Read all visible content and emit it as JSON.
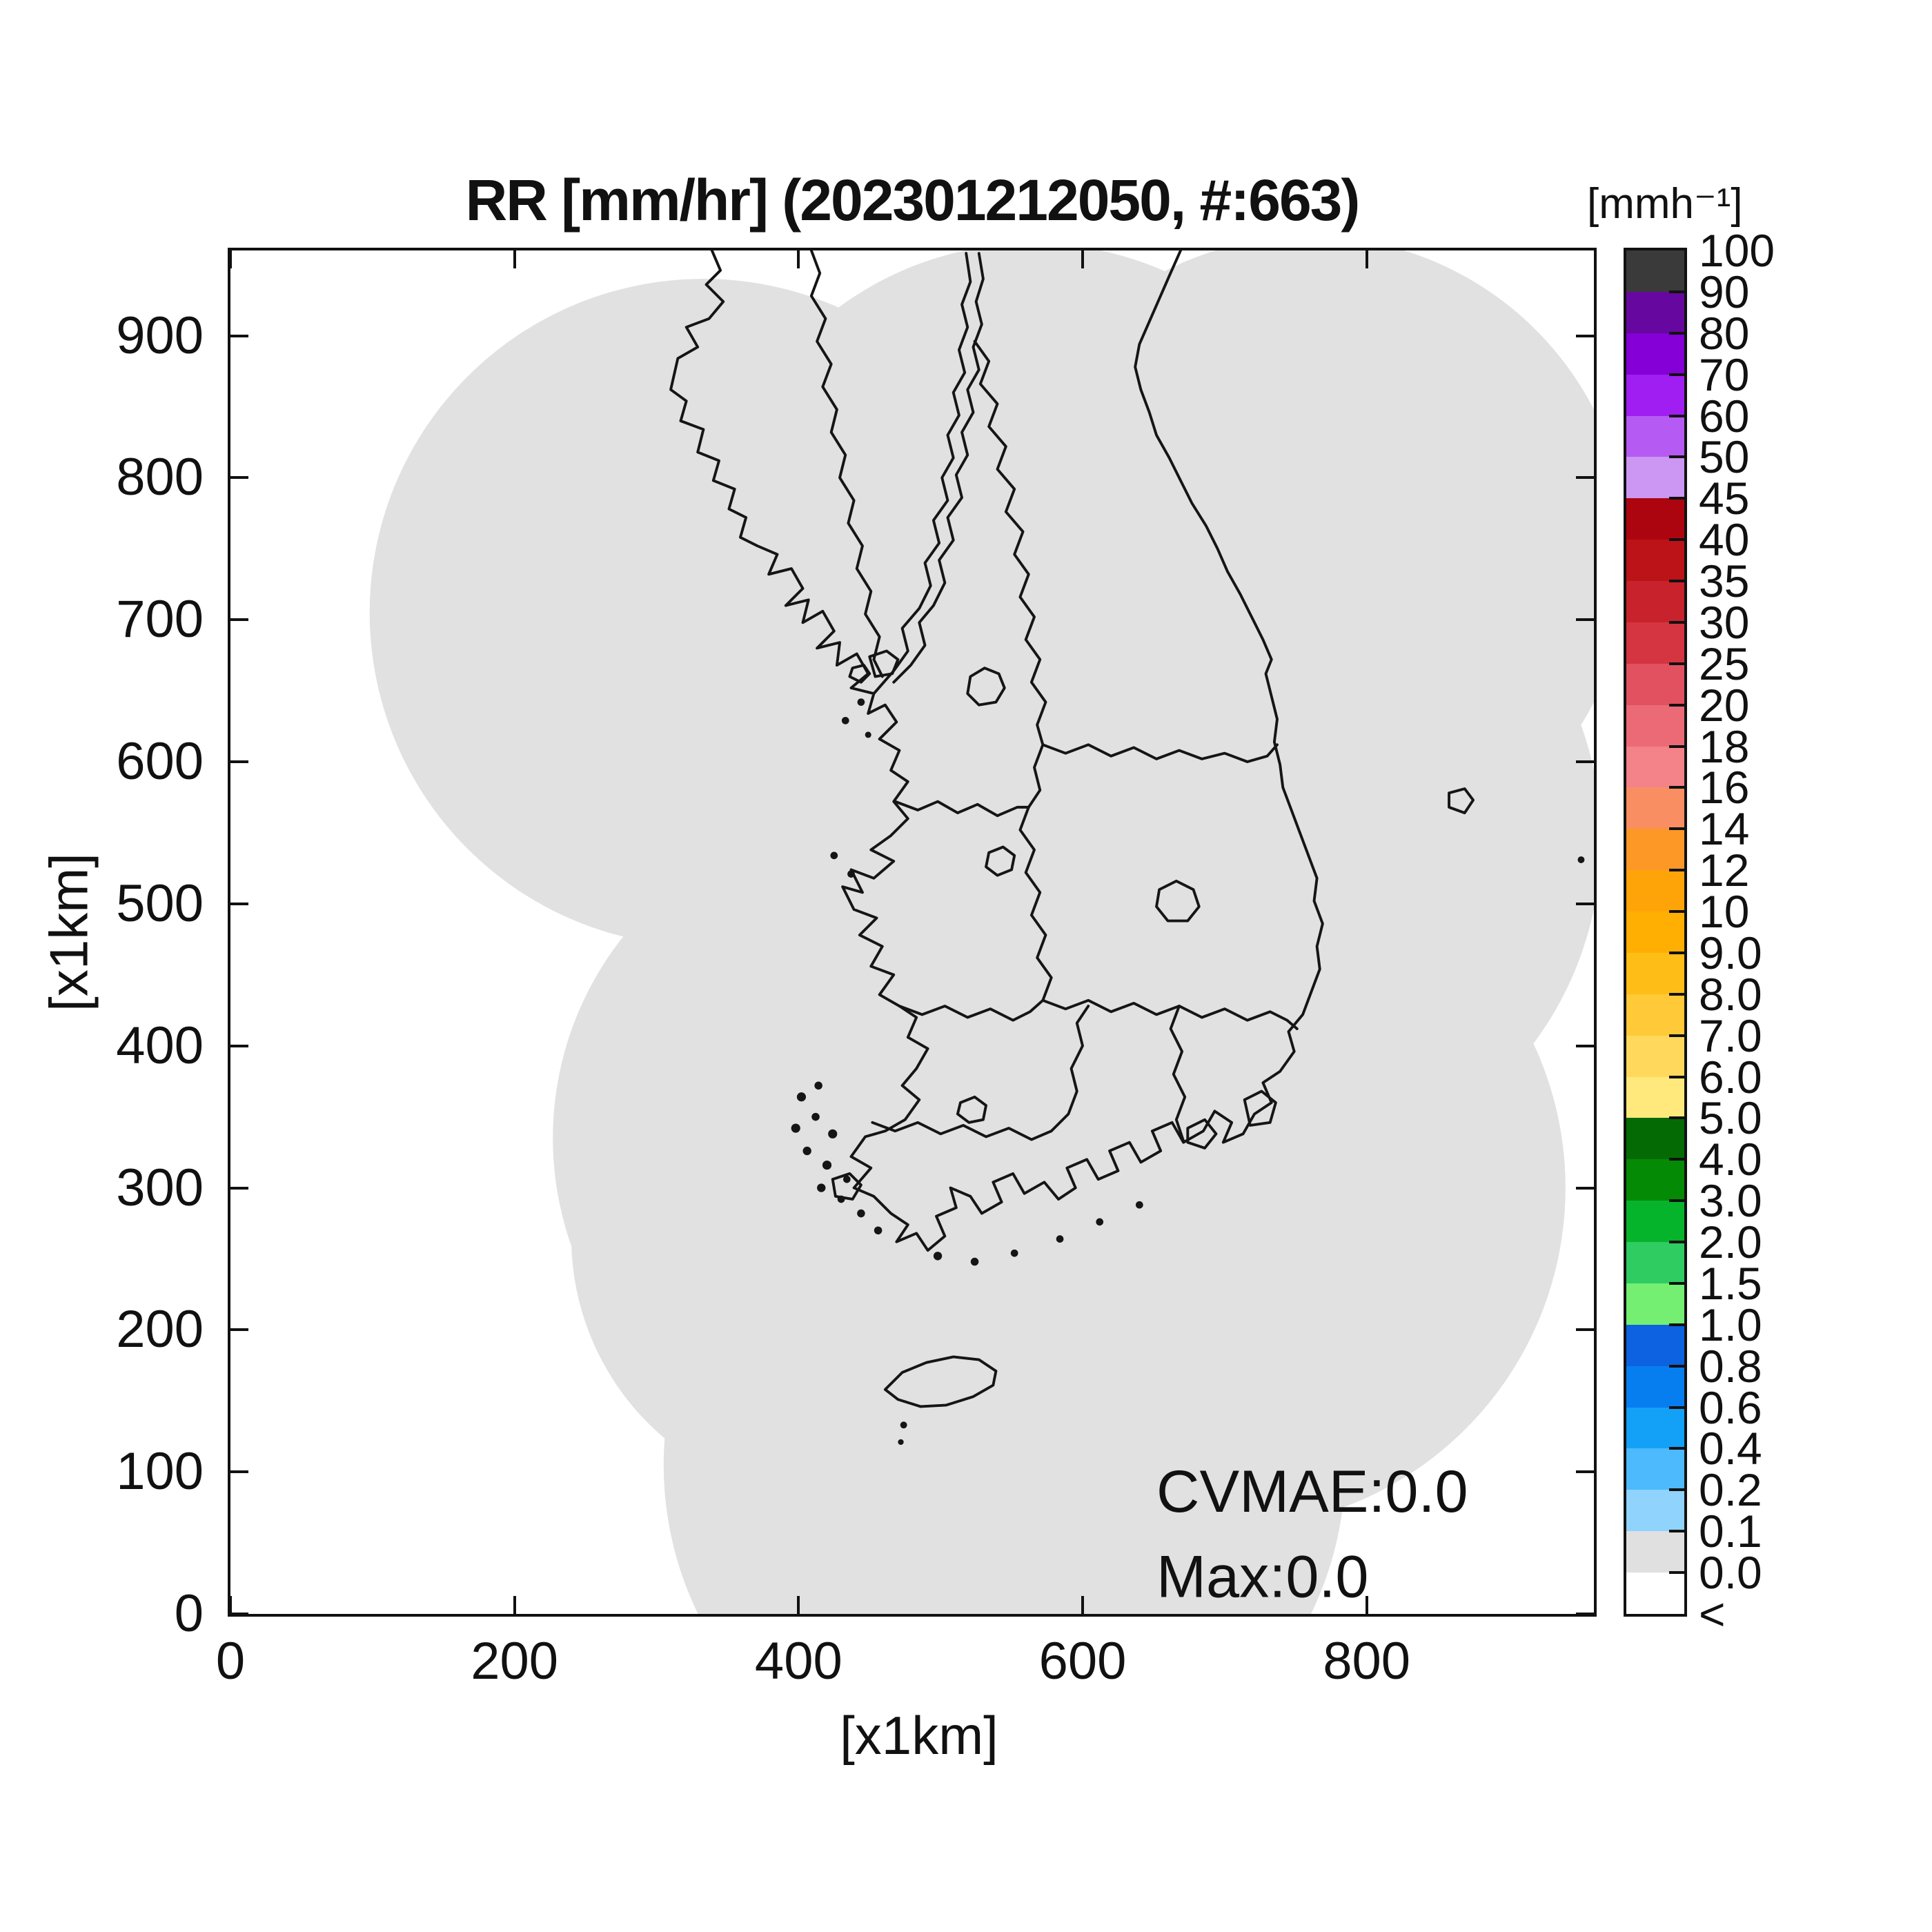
{
  "title": "RR [mm/hr] (202301212050, #:663)",
  "annotations": {
    "cvmae": "CVMAE:0.0",
    "max": "Max:0.0"
  },
  "x_axis": {
    "label": "[x1km]",
    "ticks": [
      {
        "v": 0,
        "label": "0"
      },
      {
        "v": 200,
        "label": "200"
      },
      {
        "v": 400,
        "label": "400"
      },
      {
        "v": 600,
        "label": "600"
      },
      {
        "v": 800,
        "label": "800"
      }
    ]
  },
  "y_axis": {
    "label": "[x1km]",
    "ticks": [
      {
        "v": 0,
        "label": "0"
      },
      {
        "v": 100,
        "label": "100"
      },
      {
        "v": 200,
        "label": "200"
      },
      {
        "v": 300,
        "label": "300"
      },
      {
        "v": 400,
        "label": "400"
      },
      {
        "v": 500,
        "label": "500"
      },
      {
        "v": 600,
        "label": "600"
      },
      {
        "v": 700,
        "label": "700"
      },
      {
        "v": 800,
        "label": "800"
      },
      {
        "v": 900,
        "label": "900"
      }
    ]
  },
  "colorbar": {
    "unit_label": "[mmh⁻¹]",
    "tick_labels": [
      "100",
      "90",
      "80",
      "70",
      "60",
      "50",
      "45",
      "40",
      "35",
      "30",
      "25",
      "20",
      "18",
      "16",
      "14",
      "12",
      "10",
      "9.0",
      "8.0",
      "7.0",
      "6.0",
      "5.0",
      "4.0",
      "3.0",
      "2.0",
      "1.5",
      "1.0",
      "0.8",
      "0.6",
      "0.4",
      "0.2",
      "0.1",
      "0.0",
      "<"
    ],
    "segment_colors": [
      "#3a3a3a",
      "#66079f",
      "#8400d6",
      "#a11ef2",
      "#b65af4",
      "#cb97f2",
      "#ad0510",
      "#bb1318",
      "#c8232c",
      "#d53540",
      "#e25160",
      "#ec6a76",
      "#f38289",
      "#f88e62",
      "#fd9827",
      "#ffa408",
      "#ffae02",
      "#ffbd17",
      "#ffc937",
      "#ffd85c",
      "#ffe97c",
      "#046b04",
      "#058a05",
      "#06b42b",
      "#2fcc61",
      "#74ef71",
      "#0c62e0",
      "#077ef0",
      "#12a1f7",
      "#4cbafc",
      "#90d3fd",
      "#e0e0e0",
      "#ffffff"
    ]
  },
  "map": {
    "coverage_color": "#e1e1e1",
    "outline_color": "#151515",
    "background_color": "#ffffff"
  },
  "chart_data": {
    "type": "heatmap",
    "title": "RR [mm/hr] (202301212050, #:663)",
    "xlabel": "[x1km]",
    "ylabel": "[x1km]",
    "xlim": [
      0,
      960
    ],
    "ylim": [
      0,
      960
    ],
    "x_ticks": [
      0,
      200,
      400,
      600,
      800
    ],
    "y_ticks": [
      0,
      100,
      200,
      300,
      400,
      500,
      600,
      700,
      800,
      900
    ],
    "grid": false,
    "legend_position": "right-colorbar",
    "colorbar_unit": "[mmh-1]",
    "colorbar_levels": [
      "<",
      "0.0",
      "0.1",
      "0.2",
      "0.4",
      "0.6",
      "0.8",
      "1.0",
      "1.5",
      "2.0",
      "3.0",
      "4.0",
      "5.0",
      "6.0",
      "7.0",
      "8.0",
      "9.0",
      "10",
      "12",
      "14",
      "16",
      "18",
      "20",
      "25",
      "30",
      "35",
      "40",
      "45",
      "50",
      "60",
      "70",
      "80",
      "90",
      "100"
    ],
    "timestamp": "202301212050",
    "sample_count": 663,
    "cvmae": 0.0,
    "max_value": 0.0,
    "values_note": "All radar rain-rate values in the coverage area equal 0.0 mm/hr; gray shading marks composite radar coverage (union of range circles) over the Korean Peninsula, white is outside coverage."
  }
}
